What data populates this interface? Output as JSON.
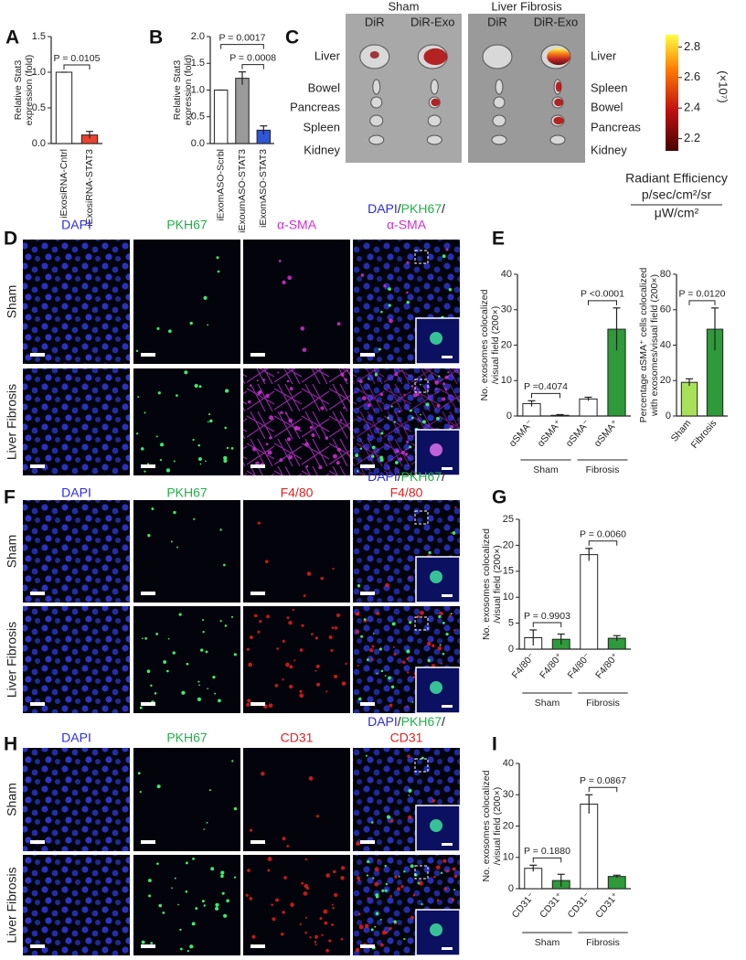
{
  "panel_letters": [
    "A",
    "B",
    "C",
    "D",
    "E",
    "F",
    "G",
    "H",
    "I"
  ],
  "chart_data": [
    {
      "type": "bar",
      "ylabel": [
        "Relative Stat3",
        "expression (fold)"
      ],
      "categories": [
        "iExosiRNA-Cntrl",
        "iExosiRNA-STAT3"
      ],
      "values": [
        1.0,
        0.12
      ],
      "errors": [
        0,
        0.05
      ],
      "colors": [
        "#ffffff",
        "#e8432e"
      ],
      "ylim": [
        0,
        1.5
      ],
      "yticks": [
        {
          "value": 0,
          "label": "0.0"
        },
        {
          "value": 0.5,
          "label": "0.5"
        },
        {
          "value": 1,
          "label": "1.0"
        },
        {
          "value": 1.5,
          "label": "1.5"
        }
      ],
      "comparisons": [
        {
          "label": "P = 0.0105",
          "bars": [
            0,
            1
          ]
        }
      ]
    },
    {
      "type": "bar",
      "ylabel": [
        "Relative Stat3",
        "expression (fold)"
      ],
      "categories": [
        "iExomASO-Scrbl",
        "iExoumASO-STAT3",
        "iExomASO-STAT3"
      ],
      "values": [
        1.0,
        1.22,
        0.25
      ],
      "errors": [
        0,
        0.12,
        0.08
      ],
      "colors": [
        "#ffffff",
        "#9a9a9a",
        "#2f56d6"
      ],
      "ylim": [
        0,
        2
      ],
      "yticks": [
        {
          "value": 0,
          "label": "0.0"
        },
        {
          "value": 0.5,
          "label": "0.5"
        },
        {
          "value": 1,
          "label": "1.0"
        },
        {
          "value": 1.5,
          "label": "1.5"
        },
        {
          "value": 2,
          "label": "2.0"
        }
      ],
      "comparisons": [
        {
          "label": "P = 0.0017",
          "bars": [
            0,
            2
          ]
        },
        {
          "label": "P = 0.0008",
          "bars": [
            1,
            2
          ]
        }
      ]
    },
    {
      "type": "bar",
      "ylabel": [
        "No. exosomes colocalized",
        "/visual field (200×)"
      ],
      "categories": [
        "αSMA⁻",
        "αSMA⁺",
        "αSMA⁻",
        "αSMA⁺"
      ],
      "values": [
        3.5,
        0.2,
        4.8,
        24.5
      ],
      "errors": [
        0.8,
        0.2,
        0.5,
        6
      ],
      "colors": [
        "#ffffff",
        "#2e9a3a",
        "#ffffff",
        "#2e9a3a"
      ],
      "ylim": [
        0,
        40
      ],
      "yticks": [
        0,
        10,
        20,
        30,
        40
      ],
      "comparisons": [
        {
          "label": "P =0.4074",
          "bars": [
            0,
            1
          ]
        },
        {
          "label": "P <0.0001",
          "bars": [
            2,
            3
          ]
        }
      ],
      "groups": [
        {
          "label": "Sham",
          "bars": [
            0,
            1
          ]
        },
        {
          "label": "Fibrosis",
          "bars": [
            2,
            3
          ]
        }
      ]
    },
    {
      "type": "bar",
      "ylabel": [
        "Percentage αSMA⁺ cells colocalized",
        "with exosomes/visual field (200×)"
      ],
      "categories": [
        "Sham",
        "Fibrosis"
      ],
      "values": [
        19,
        49
      ],
      "errors": [
        2,
        12
      ],
      "colors": [
        "#a8e05a",
        "#2e9a3a"
      ],
      "ylim": [
        0,
        80
      ],
      "yticks": [
        0,
        20,
        40,
        60,
        80
      ],
      "comparisons": [
        {
          "label": "P = 0.0120",
          "bars": [
            0,
            1
          ]
        }
      ]
    },
    {
      "type": "bar",
      "ylabel": [
        "No. exosomes colocalized",
        "/visual field (200×)"
      ],
      "categories": [
        "F4/80⁻",
        "F4/80⁺",
        "F4/80⁻",
        "F4/80⁺"
      ],
      "values": [
        2.2,
        1.9,
        18.2,
        2.1
      ],
      "errors": [
        1.5,
        1,
        1.2,
        0.5
      ],
      "colors": [
        "#ffffff",
        "#2e9a3a",
        "#ffffff",
        "#2e9a3a"
      ],
      "ylim": [
        0,
        25
      ],
      "yticks": [
        0,
        5,
        10,
        15,
        20,
        25
      ],
      "comparisons": [
        {
          "label": "P = 0.9903",
          "bars": [
            0,
            1
          ]
        },
        {
          "label": "P = 0.0060",
          "bars": [
            2,
            3
          ]
        }
      ],
      "groups": [
        {
          "label": "Sham",
          "bars": [
            0,
            1
          ]
        },
        {
          "label": "Fibrosis",
          "bars": [
            2,
            3
          ]
        }
      ]
    },
    {
      "type": "bar",
      "ylabel": [
        "No. exosomes colocalized",
        "/visual field (200×)"
      ],
      "categories": [
        "CD31⁻",
        "CD31⁺",
        "CD31⁻",
        "CD31⁺"
      ],
      "values": [
        6.5,
        2.6,
        27,
        3.9
      ],
      "errors": [
        1,
        2,
        3,
        0.4
      ],
      "colors": [
        "#ffffff",
        "#2e9a3a",
        "#ffffff",
        "#2e9a3a"
      ],
      "ylim": [
        0,
        40
      ],
      "yticks": [
        0,
        10,
        20,
        30,
        40
      ],
      "comparisons": [
        {
          "label": "P = 0.1880",
          "bars": [
            0,
            1
          ]
        },
        {
          "label": "P = 0.0867",
          "bars": [
            2,
            3
          ]
        }
      ],
      "groups": [
        {
          "label": "Sham",
          "bars": [
            0,
            1
          ]
        },
        {
          "label": "Fibrosis",
          "bars": [
            2,
            3
          ]
        }
      ]
    }
  ],
  "imaging": {
    "groups": [
      "Sham",
      "Liver Fibrosis"
    ],
    "columns": [
      "DiR",
      "DiR-Exo"
    ],
    "organs_left": [
      "Liver",
      "Bowel",
      "Pancreas",
      "Spleen",
      "Kidney"
    ],
    "organs_right": [
      "Liver",
      "Spleen",
      "Bowel",
      "Pancreas",
      "Kidney"
    ],
    "colorbar": {
      "ticks": [
        2.8,
        2.6,
        2.4,
        2.2
      ],
      "lim": [
        2.12,
        2.88
      ],
      "exponent": "(×10⁷)",
      "title": "Radiant Efficiency",
      "numerator": "p/sec/cm²/sr",
      "denominator": "μW/cm²"
    }
  },
  "microscopy": [
    {
      "columns": [
        "DAPI",
        "PKH67",
        "α-SMA"
      ],
      "merge_title": [
        [
          "DAPI",
          "/",
          "PKH67",
          "/"
        ],
        "α-SMA"
      ],
      "rows": [
        "Sham",
        "Liver Fibrosis"
      ],
      "colors": [
        "#2a2ae8",
        "#22b04a",
        "#d030d0",
        "#222222"
      ]
    },
    {
      "columns": [
        "DAPI",
        "PKH67",
        "F4/80"
      ],
      "merge_title": [
        [
          "DAPI",
          "/",
          "PKH67",
          "/"
        ],
        "F4/80"
      ],
      "rows": [
        "Sham",
        "Liver Fibrosis"
      ],
      "colors": [
        "#2a2ae8",
        "#22b04a",
        "#e02020",
        "#222222"
      ]
    },
    {
      "columns": [
        "DAPI",
        "PKH67",
        "CD31"
      ],
      "merge_title": [
        [
          "DAPI",
          "/",
          "PKH67",
          "/"
        ],
        "CD31"
      ],
      "rows": [
        "Sham",
        "Liver Fibrosis"
      ],
      "colors": [
        "#2a2ae8",
        "#22b04a",
        "#e02020",
        "#222222"
      ]
    }
  ]
}
